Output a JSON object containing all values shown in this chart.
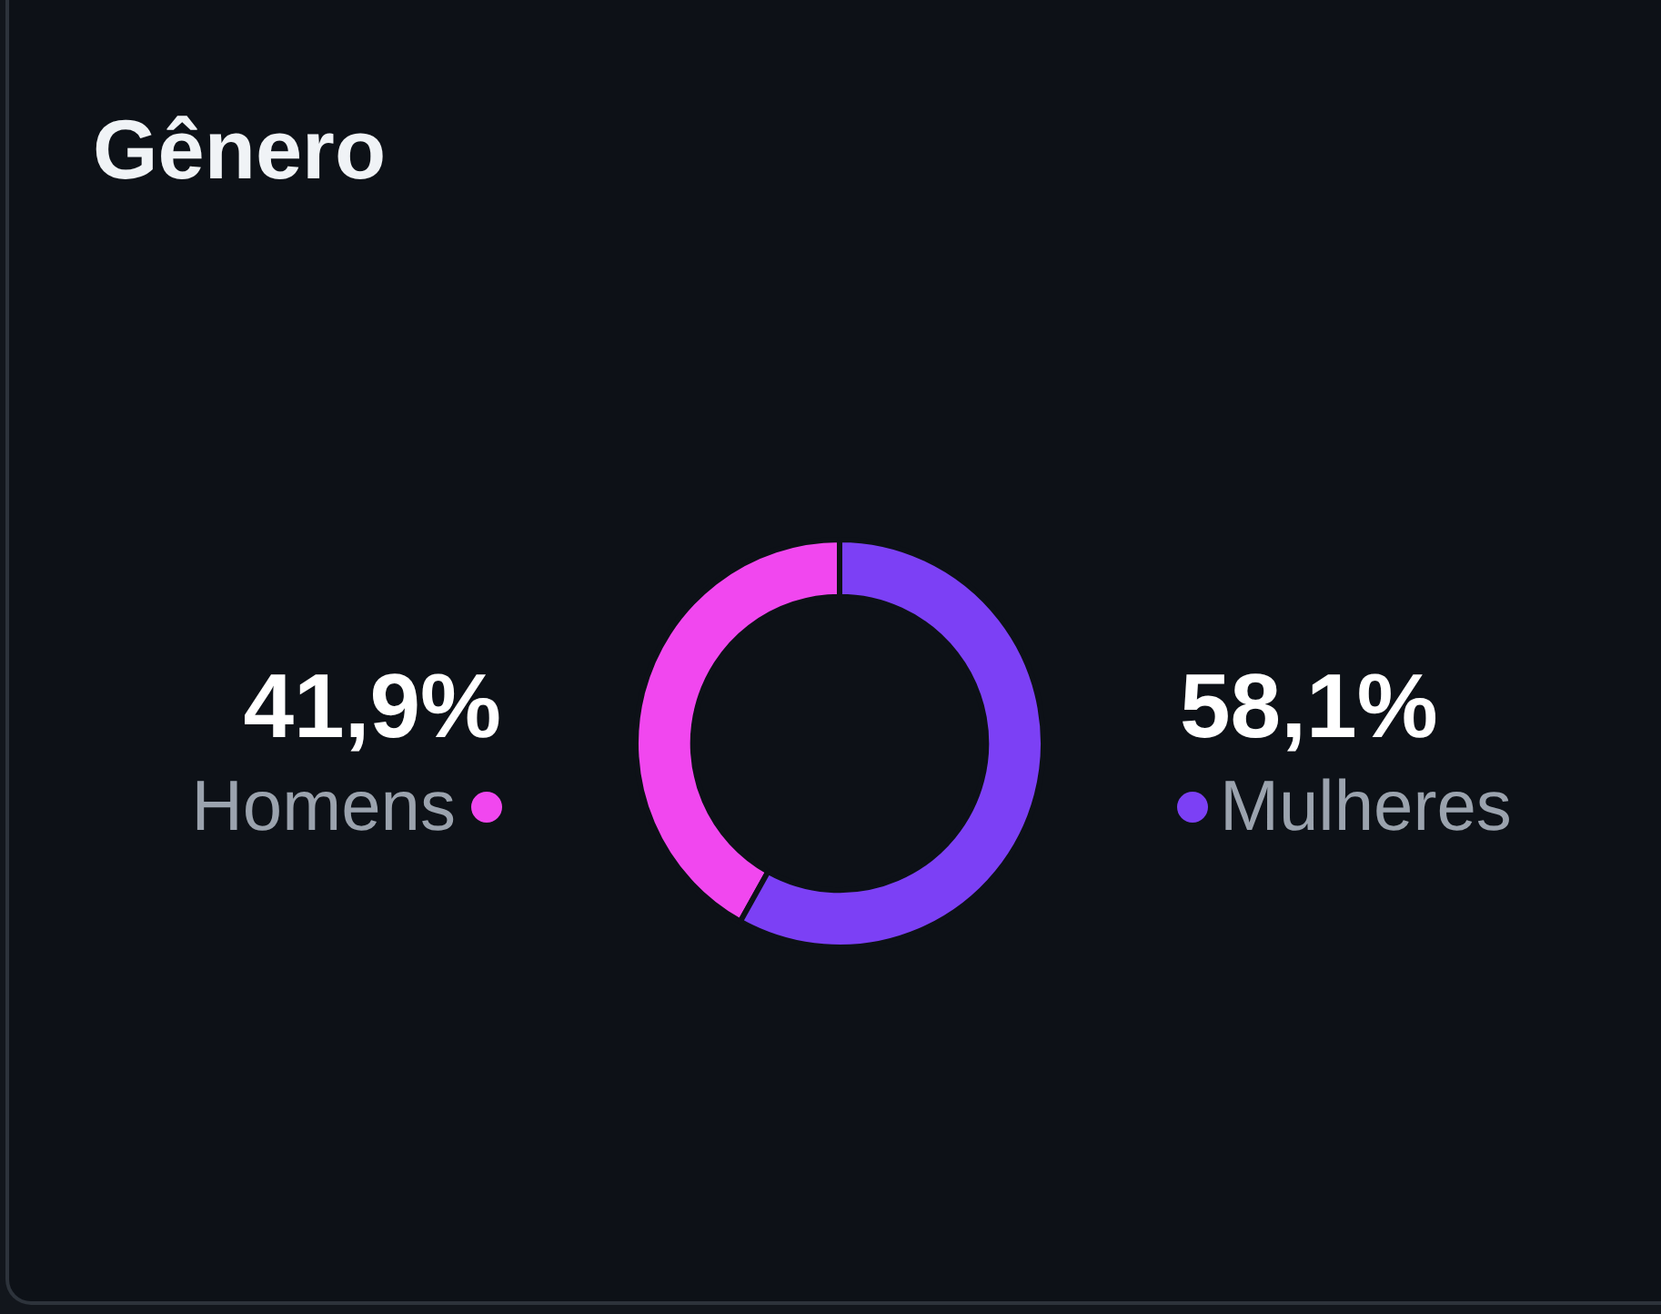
{
  "chart_data": {
    "type": "donut",
    "title": "Gênero",
    "categories": [
      "Homens",
      "Mulheres"
    ],
    "values": [
      41.9,
      58.1
    ],
    "colors": [
      "#f147ef",
      "#7c40f5"
    ],
    "value_labels": [
      "41,9%",
      "58,1%"
    ]
  }
}
